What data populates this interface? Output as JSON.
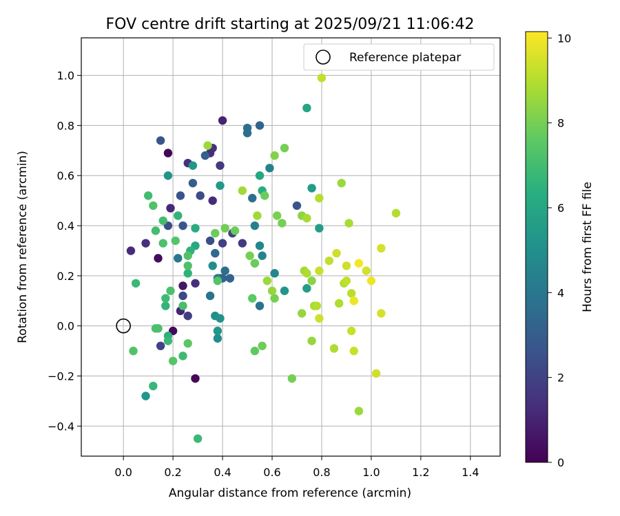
{
  "chart_data": {
    "type": "scatter",
    "title": "FOV centre drift starting at 2025/09/21 11:06:42",
    "xlabel": "Angular distance from reference (arcmin)",
    "ylabel": "Rotation from reference (arcmin)",
    "xlim": [
      -0.17,
      1.52
    ],
    "ylim": [
      -0.52,
      1.15
    ],
    "x_ticks": [
      0.0,
      0.2,
      0.4,
      0.6,
      0.8,
      1.0,
      1.2,
      1.4
    ],
    "x_tick_labels": [
      "0.0",
      "0.2",
      "0.4",
      "0.6",
      "0.8",
      "1.0",
      "1.2",
      "1.4"
    ],
    "y_ticks": [
      -0.4,
      -0.2,
      0.0,
      0.2,
      0.4,
      0.6,
      0.8,
      1.0
    ],
    "y_tick_labels": [
      "−0.4",
      "−0.2",
      "0.0",
      "0.2",
      "0.4",
      "0.6",
      "0.8",
      "1.0"
    ],
    "grid": true,
    "legend": {
      "position": "upper-right",
      "entries": [
        "Reference platepar"
      ]
    },
    "reference": {
      "x": 0.0,
      "y": 0.0,
      "label": "Reference platepar"
    },
    "colorbar": {
      "label": "Hours from first FF file",
      "min": 0,
      "max": 10.15,
      "ticks": [
        0,
        2,
        4,
        6,
        8,
        10
      ],
      "tick_labels": [
        "0",
        "2",
        "4",
        "6",
        "8",
        "10"
      ],
      "colormap": "viridis"
    },
    "points": [
      [
        0.18,
        0.69,
        0.1
      ],
      [
        0.14,
        0.27,
        0.3
      ],
      [
        0.2,
        -0.02,
        0.2
      ],
      [
        0.29,
        -0.21,
        0.2
      ],
      [
        0.4,
        0.82,
        1.0
      ],
      [
        0.24,
        0.16,
        0.6
      ],
      [
        0.03,
        0.3,
        1.2
      ],
      [
        0.09,
        0.33,
        1.4
      ],
      [
        0.19,
        0.47,
        1.1
      ],
      [
        0.23,
        0.06,
        1.0
      ],
      [
        0.29,
        0.17,
        1.3
      ],
      [
        0.26,
        0.65,
        1.4
      ],
      [
        0.36,
        0.71,
        1.4
      ],
      [
        0.35,
        0.69,
        1.3
      ],
      [
        0.36,
        0.5,
        1.2
      ],
      [
        0.39,
        0.64,
        1.7
      ],
      [
        0.48,
        0.33,
        1.7
      ],
      [
        0.44,
        0.37,
        1.9
      ],
      [
        0.4,
        0.33,
        2.0
      ],
      [
        0.24,
        0.12,
        2.2
      ],
      [
        0.26,
        0.04,
        1.9
      ],
      [
        0.15,
        -0.08,
        2.0
      ],
      [
        0.23,
        0.52,
        2.6
      ],
      [
        0.18,
        0.4,
        2.4
      ],
      [
        0.31,
        0.52,
        2.3
      ],
      [
        0.24,
        0.4,
        2.7
      ],
      [
        0.35,
        0.34,
        2.4
      ],
      [
        0.39,
        0.19,
        2.3
      ],
      [
        0.15,
        0.74,
        2.7
      ],
      [
        0.28,
        0.57,
        3.0
      ],
      [
        0.33,
        0.68,
        3.1
      ],
      [
        0.43,
        0.19,
        3.2
      ],
      [
        0.4,
        0.19,
        3.3
      ],
      [
        0.55,
        0.8,
        3.3
      ],
      [
        0.7,
        0.48,
        2.7
      ],
      [
        0.5,
        0.77,
        3.6
      ],
      [
        0.5,
        0.79,
        3.7
      ],
      [
        0.37,
        0.29,
        3.5
      ],
      [
        0.41,
        0.22,
        3.6
      ],
      [
        0.35,
        0.12,
        3.8
      ],
      [
        0.52,
        0.51,
        3.7
      ],
      [
        0.55,
        0.08,
        3.9
      ],
      [
        0.38,
        0.19,
        4.1
      ],
      [
        0.22,
        0.27,
        4.0
      ],
      [
        0.53,
        0.4,
        4.4
      ],
      [
        0.56,
        0.28,
        4.5
      ],
      [
        0.55,
        0.32,
        4.6
      ],
      [
        0.59,
        0.63,
        4.4
      ],
      [
        0.61,
        0.21,
        4.7
      ],
      [
        0.65,
        0.14,
        5.2
      ],
      [
        0.36,
        0.24,
        5.0
      ],
      [
        0.38,
        -0.05,
        4.9
      ],
      [
        0.37,
        0.04,
        5.0
      ],
      [
        0.38,
        -0.02,
        5.3
      ],
      [
        0.39,
        0.03,
        5.1
      ],
      [
        0.28,
        0.64,
        5.3
      ],
      [
        0.18,
        0.6,
        5.2
      ],
      [
        0.39,
        0.56,
        5.4
      ],
      [
        0.74,
        0.15,
        5.6
      ],
      [
        0.76,
        0.55,
        5.5
      ],
      [
        0.79,
        0.39,
        5.6
      ],
      [
        0.74,
        0.87,
        5.9
      ],
      [
        0.55,
        0.6,
        6.0
      ],
      [
        0.56,
        0.54,
        6.3
      ],
      [
        0.53,
        0.25,
        6.4
      ],
      [
        0.29,
        0.39,
        6.3
      ],
      [
        0.29,
        0.32,
        6.1
      ],
      [
        0.27,
        0.3,
        6.5
      ],
      [
        0.26,
        0.21,
        6.5
      ],
      [
        0.17,
        0.08,
        6.6
      ],
      [
        0.18,
        -0.04,
        6.5
      ],
      [
        0.18,
        -0.06,
        6.8
      ],
      [
        0.24,
        -0.12,
        6.9
      ],
      [
        0.09,
        -0.28,
        5.3
      ],
      [
        0.12,
        -0.24,
        6.7
      ],
      [
        0.22,
        0.44,
        6.6
      ],
      [
        0.3,
        -0.45,
        6.8
      ],
      [
        0.14,
        -0.01,
        7.1
      ],
      [
        0.13,
        -0.01,
        7.2
      ],
      [
        0.1,
        0.52,
        7.0
      ],
      [
        0.05,
        0.17,
        6.8
      ],
      [
        0.04,
        -0.1,
        7.3
      ],
      [
        0.13,
        0.38,
        7.0
      ],
      [
        0.16,
        0.42,
        7.0
      ],
      [
        0.17,
        0.11,
        6.9
      ],
      [
        0.19,
        0.14,
        7.2
      ],
      [
        0.24,
        0.08,
        7.1
      ],
      [
        0.26,
        0.24,
        7.2
      ],
      [
        0.26,
        0.28,
        7.3
      ],
      [
        0.21,
        0.34,
        7.4
      ],
      [
        0.16,
        0.33,
        7.2
      ],
      [
        0.12,
        0.48,
        7.3
      ],
      [
        0.2,
        -0.14,
        7.4
      ],
      [
        0.26,
        -0.07,
        7.5
      ],
      [
        0.38,
        0.18,
        7.4
      ],
      [
        0.37,
        0.37,
        7.8
      ],
      [
        0.41,
        0.39,
        7.9
      ],
      [
        0.45,
        0.38,
        7.8
      ],
      [
        0.52,
        0.11,
        7.6
      ],
      [
        0.53,
        -0.1,
        7.6
      ],
      [
        0.53,
        0.25,
        7.8
      ],
      [
        0.56,
        -0.08,
        7.9
      ],
      [
        0.51,
        0.28,
        8.0
      ],
      [
        0.57,
        0.52,
        7.8
      ],
      [
        0.61,
        0.11,
        8.0
      ],
      [
        0.61,
        0.68,
        8.2
      ],
      [
        0.62,
        0.44,
        8.1
      ],
      [
        0.64,
        0.41,
        8.0
      ],
      [
        0.65,
        0.71,
        8.0
      ],
      [
        0.68,
        -0.21,
        8.0
      ],
      [
        0.34,
        0.72,
        8.6
      ],
      [
        0.48,
        0.54,
        8.7
      ],
      [
        0.54,
        0.44,
        8.7
      ],
      [
        0.58,
        0.18,
        8.6
      ],
      [
        0.6,
        0.14,
        8.5
      ],
      [
        0.72,
        0.44,
        8.4
      ],
      [
        0.72,
        0.05,
        8.5
      ],
      [
        0.73,
        0.22,
        8.7
      ],
      [
        0.74,
        0.21,
        8.9
      ],
      [
        0.74,
        0.43,
        8.8
      ],
      [
        0.76,
        0.18,
        8.3
      ],
      [
        0.76,
        -0.06,
        8.5
      ],
      [
        0.77,
        0.08,
        8.8
      ],
      [
        0.78,
        0.08,
        9.0
      ],
      [
        0.79,
        0.03,
        9.4
      ],
      [
        0.79,
        0.51,
        9.0
      ],
      [
        0.79,
        0.22,
        9.3
      ],
      [
        0.8,
        0.99,
        9.2
      ],
      [
        0.83,
        0.26,
        9.2
      ],
      [
        0.85,
        -0.09,
        8.9
      ],
      [
        0.86,
        0.29,
        9.4
      ],
      [
        0.87,
        0.09,
        8.9
      ],
      [
        0.88,
        0.57,
        8.6
      ],
      [
        0.89,
        0.17,
        9.0
      ],
      [
        0.9,
        0.18,
        9.2
      ],
      [
        0.9,
        0.24,
        9.4
      ],
      [
        0.91,
        0.41,
        8.8
      ],
      [
        0.92,
        0.13,
        9.1
      ],
      [
        0.92,
        -0.02,
        9.3
      ],
      [
        0.93,
        -0.1,
        9.3
      ],
      [
        0.93,
        0.1,
        9.6
      ],
      [
        0.93,
        0.1,
        9.9
      ],
      [
        0.95,
        -0.34,
        8.6
      ],
      [
        0.95,
        0.25,
        10.0
      ],
      [
        0.98,
        0.22,
        9.5
      ],
      [
        1.0,
        0.18,
        9.9
      ],
      [
        1.02,
        -0.19,
        9.4
      ],
      [
        1.04,
        0.05,
        9.5
      ],
      [
        1.04,
        0.31,
        9.5
      ],
      [
        1.1,
        0.45,
        9.0
      ]
    ]
  }
}
